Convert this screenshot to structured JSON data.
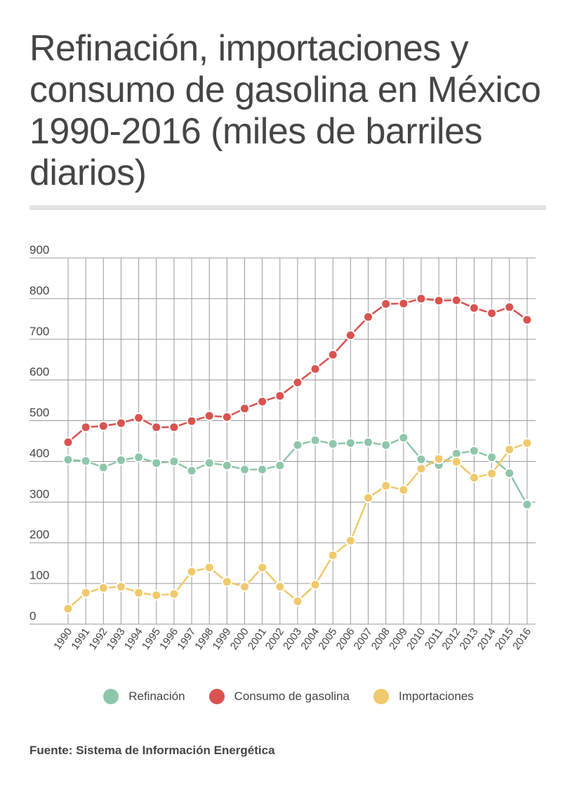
{
  "title": "Refinación, importaciones y consumo de gasolina en México 1990-2016 (miles de barriles diarios)",
  "source": "Fuente: Sistema de Información Energética",
  "chart_data": {
    "type": "line",
    "title": "Refinación, importaciones y consumo de gasolina en México 1990-2016 (miles de barriles diarios)",
    "x": [
      "1990",
      "1991",
      "1992",
      "1993",
      "1994",
      "1995",
      "1996",
      "1997",
      "1998",
      "1999",
      "2000",
      "2001",
      "2002",
      "2003",
      "2004",
      "2005",
      "2006",
      "2007",
      "2008",
      "2009",
      "2010",
      "2011",
      "2012",
      "2013",
      "2014",
      "2015",
      "2016"
    ],
    "ylim": [
      0,
      900
    ],
    "yticks": [
      0,
      100,
      200,
      300,
      400,
      500,
      600,
      700,
      800,
      900
    ],
    "grid": true,
    "legend_position": "bottom",
    "series": [
      {
        "name": "Refinación",
        "color": "#8ec6aa",
        "values": [
          404,
          401,
          385,
          403,
          410,
          396,
          400,
          377,
          396,
          390,
          380,
          380,
          390,
          440,
          452,
          443,
          445,
          447,
          440,
          458,
          405,
          391,
          419,
          426,
          410,
          371,
          294
        ]
      },
      {
        "name": "Consumo de gasolina",
        "color": "#d9534f",
        "values": [
          447,
          484,
          487,
          494,
          507,
          484,
          484,
          499,
          512,
          509,
          530,
          547,
          561,
          594,
          627,
          662,
          710,
          755,
          787,
          788,
          800,
          795,
          796,
          777,
          764,
          779,
          748
        ]
      },
      {
        "name": "Importaciones",
        "color": "#f0c96c",
        "values": [
          38,
          77,
          89,
          92,
          77,
          71,
          74,
          129,
          139,
          104,
          92,
          139,
          92,
          56,
          97,
          169,
          205,
          310,
          340,
          330,
          382,
          406,
          399,
          360,
          370,
          429,
          445
        ]
      }
    ]
  }
}
